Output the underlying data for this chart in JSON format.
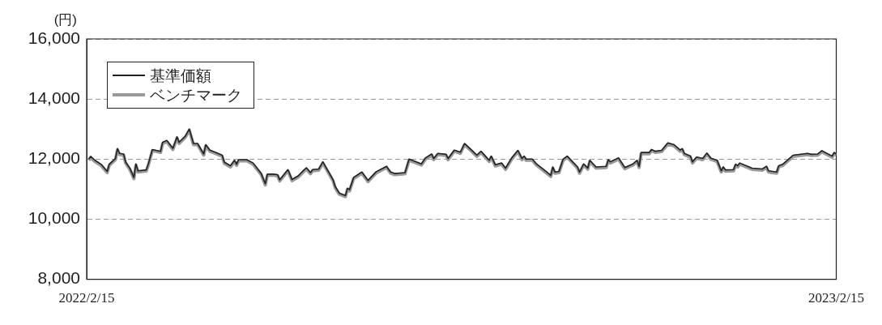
{
  "chart_data": {
    "type": "line",
    "ylabel": "(円)",
    "legend": "top left",
    "grid": "y",
    "marker": "none",
    "line_style": "solid",
    "ylim": [
      8000,
      16000
    ],
    "yticks": [
      {
        "value": 8000,
        "label": "8,000"
      },
      {
        "value": 10000,
        "label": "10,000"
      },
      {
        "value": 12000,
        "label": "12,000"
      },
      {
        "value": 14000,
        "label": "14,000"
      },
      {
        "value": 16000,
        "label": "16,000"
      }
    ],
    "xlim": [
      "2022-02-15",
      "2023-02-15"
    ],
    "xticks": [
      {
        "value": "2022-02-15",
        "label": "2022/2/15"
      },
      {
        "value": "2023-02-15",
        "label": "2023/2/15"
      }
    ],
    "x": [
      "2022-02-16",
      "2022-02-17",
      "2022-02-19",
      "2022-02-22",
      "2022-02-25",
      "2022-02-26",
      "2022-03-01",
      "2022-03-02",
      "2022-03-03",
      "2022-03-05",
      "2022-03-06",
      "2022-03-08",
      "2022-03-10",
      "2022-03-11",
      "2022-03-12",
      "2022-03-16",
      "2022-03-17",
      "2022-03-19",
      "2022-03-23",
      "2022-03-24",
      "2022-03-26",
      "2022-03-29",
      "2022-03-31",
      "2022-04-01",
      "2022-04-04",
      "2022-04-06",
      "2022-04-08",
      "2022-04-10",
      "2022-04-13",
      "2022-04-14",
      "2022-04-16",
      "2022-04-19",
      "2022-04-22",
      "2022-04-23",
      "2022-04-26",
      "2022-04-28",
      "2022-04-29",
      "2022-04-30",
      "2022-05-04",
      "2022-05-07",
      "2022-05-11",
      "2022-05-13",
      "2022-05-14",
      "2022-05-17",
      "2022-05-19",
      "2022-05-20",
      "2022-05-24",
      "2022-05-26",
      "2022-05-29",
      "2022-06-01",
      "2022-06-02",
      "2022-06-04",
      "2022-06-05",
      "2022-06-08",
      "2022-06-10",
      "2022-06-15",
      "2022-06-16",
      "2022-06-18",
      "2022-06-21",
      "2022-06-22",
      "2022-06-23",
      "2022-06-25",
      "2022-06-29",
      "2022-07-02",
      "2022-07-06",
      "2022-07-08",
      "2022-07-11",
      "2022-07-13",
      "2022-07-15",
      "2022-07-20",
      "2022-07-22",
      "2022-07-28",
      "2022-07-30",
      "2022-08-02",
      "2022-08-03",
      "2022-08-05",
      "2022-08-09",
      "2022-08-10",
      "2022-08-13",
      "2022-08-16",
      "2022-08-18",
      "2022-08-21",
      "2022-08-24",
      "2022-08-26",
      "2022-08-30",
      "2022-08-31",
      "2022-09-02",
      "2022-09-05",
      "2022-09-07",
      "2022-09-10",
      "2022-09-13",
      "2022-09-15",
      "2022-09-16",
      "2022-09-17",
      "2022-09-20",
      "2022-09-22",
      "2022-09-27",
      "2022-09-29",
      "2022-09-30",
      "2022-10-01",
      "2022-10-03",
      "2022-10-05",
      "2022-10-07",
      "2022-10-12",
      "2022-10-13",
      "2022-10-15",
      "2022-10-17",
      "2022-10-18",
      "2022-10-21",
      "2022-10-26",
      "2022-10-27",
      "2022-10-28",
      "2022-11-01",
      "2022-11-04",
      "2022-11-08",
      "2022-11-10",
      "2022-11-11",
      "2022-11-12",
      "2022-11-16",
      "2022-11-17",
      "2022-11-19",
      "2022-11-22",
      "2022-11-25",
      "2022-11-28",
      "2022-12-01",
      "2022-12-02",
      "2022-12-03",
      "2022-12-06",
      "2022-12-07",
      "2022-12-09",
      "2022-12-12",
      "2022-12-14",
      "2022-12-16",
      "2022-12-19",
      "2022-12-21",
      "2022-12-22",
      "2022-12-23",
      "2022-12-27",
      "2022-12-28",
      "2022-12-29",
      "2022-12-30",
      "2023-01-05",
      "2023-01-10",
      "2023-01-12",
      "2023-01-13",
      "2023-01-17",
      "2023-01-18",
      "2023-01-20",
      "2023-01-25",
      "2023-02-01",
      "2023-02-03",
      "2023-02-06",
      "2023-02-08",
      "2023-02-13",
      "2023-02-14",
      "2023-02-15"
    ],
    "series": [
      {
        "name": "ベンチマーク",
        "color": "#999999",
        "values": [
          11960,
          12050,
          11920,
          11790,
          11550,
          11790,
          11980,
          12310,
          12150,
          12130,
          11860,
          11660,
          11350,
          11800,
          11570,
          11600,
          11790,
          12280,
          12220,
          12520,
          12580,
          12320,
          12700,
          12520,
          12720,
          12960,
          12480,
          12480,
          12130,
          12440,
          12260,
          12180,
          12090,
          11860,
          11740,
          11920,
          11790,
          11940,
          11940,
          11830,
          11480,
          11140,
          11460,
          11460,
          11440,
          11270,
          11610,
          11280,
          11400,
          11610,
          11670,
          11510,
          11610,
          11630,
          11870,
          11270,
          11050,
          10830,
          10750,
          10990,
          10940,
          11350,
          11530,
          11250,
          11540,
          11610,
          11720,
          11530,
          11480,
          11510,
          11960,
          11800,
          12000,
          12130,
          11980,
          12150,
          12120,
          11980,
          12260,
          12190,
          12480,
          12290,
          12090,
          12220,
          11920,
          12060,
          11770,
          11830,
          11660,
          12000,
          12250,
          11980,
          12060,
          11960,
          11960,
          11800,
          11530,
          11420,
          11700,
          11530,
          11550,
          11960,
          12060,
          11700,
          11530,
          11800,
          11660,
          11920,
          11700,
          11720,
          11940,
          11870,
          12000,
          11680,
          11800,
          11920,
          11720,
          12180,
          12180,
          12280,
          12220,
          12250,
          12500,
          12440,
          12260,
          12310,
          12150,
          12060,
          11870,
          12030,
          11980,
          12160,
          11990,
          11920,
          11570,
          11700,
          11600,
          11610,
          11790,
          11740,
          11830,
          11660,
          11630,
          11720,
          11570,
          11530,
          11740,
          11790,
          12090,
          12150,
          12120,
          12130,
          12240,
          12060,
          12180,
          12130
        ]
      },
      {
        "name": "基準価額",
        "color": "#222222",
        "values": [
          12000,
          12090,
          11960,
          11830,
          11590,
          11830,
          12020,
          12350,
          12190,
          12170,
          11900,
          11700,
          11390,
          11840,
          11610,
          11640,
          11830,
          12320,
          12260,
          12560,
          12620,
          12360,
          12740,
          12560,
          12760,
          13000,
          12520,
          12520,
          12170,
          12480,
          12300,
          12220,
          12130,
          11900,
          11780,
          11960,
          11830,
          11980,
          11980,
          11870,
          11520,
          11180,
          11500,
          11500,
          11480,
          11310,
          11650,
          11320,
          11440,
          11650,
          11710,
          11550,
          11650,
          11670,
          11910,
          11310,
          11090,
          10870,
          10790,
          11030,
          10980,
          11390,
          11570,
          11290,
          11580,
          11650,
          11760,
          11570,
          11520,
          11550,
          12000,
          11840,
          12040,
          12170,
          12020,
          12190,
          12160,
          12020,
          12300,
          12230,
          12520,
          12330,
          12130,
          12260,
          11960,
          12100,
          11810,
          11870,
          11700,
          12040,
          12290,
          12020,
          12100,
          12000,
          12000,
          11840,
          11570,
          11460,
          11740,
          11570,
          11590,
          12000,
          12100,
          11740,
          11570,
          11840,
          11700,
          11960,
          11740,
          11760,
          11980,
          11910,
          12040,
          11720,
          11840,
          11960,
          11760,
          12220,
          12220,
          12320,
          12260,
          12290,
          12540,
          12480,
          12300,
          12350,
          12190,
          12100,
          11910,
          12070,
          12020,
          12200,
          12030,
          11960,
          11610,
          11740,
          11640,
          11650,
          11830,
          11780,
          11870,
          11700,
          11670,
          11760,
          11610,
          11570,
          11780,
          11830,
          12130,
          12190,
          12160,
          12170,
          12280,
          12100,
          12220,
          12170
        ]
      }
    ]
  }
}
